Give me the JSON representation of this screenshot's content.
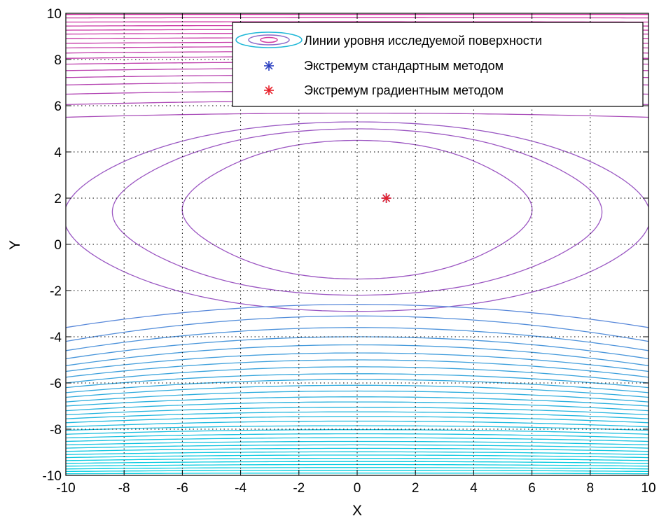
{
  "chart_data": {
    "type": "contour",
    "title": "",
    "xlabel": "X",
    "ylabel": "Y",
    "xlim": [
      -10,
      10
    ],
    "ylim": [
      -10,
      10
    ],
    "xticks": [
      -10,
      -8,
      -6,
      -4,
      -2,
      0,
      2,
      4,
      6,
      8,
      10
    ],
    "yticks": [
      -10,
      -8,
      -6,
      -4,
      -2,
      0,
      2,
      4,
      6,
      8,
      10
    ],
    "grid": true,
    "grid_style": "dotted",
    "legend_location": "top-right",
    "legend": [
      {
        "label": "Линии уровня исследуемой поверхности",
        "marker": "contour-ellipses",
        "color": "#20b8d8"
      },
      {
        "label": "Экстремум стандартным методом",
        "marker": "*",
        "color": "#2a3fc0"
      },
      {
        "label": "Экстремум градиентным методом",
        "marker": "*",
        "color": "#e8202a"
      }
    ],
    "points": [
      {
        "series": "Экстремум стандартным методом",
        "x": 1,
        "y": 2,
        "color": "#2a3fc0"
      },
      {
        "series": "Экстремум градиентным методом",
        "x": 1,
        "y": 2,
        "color": "#e8202a"
      }
    ],
    "contour_colormap": [
      "#00d0e0",
      "#7a70d8",
      "#d030a0"
    ],
    "contours": {
      "top_lines": [
        {
          "y": 9.95
        },
        {
          "y": 9.8
        },
        {
          "y": 9.62
        },
        {
          "y": 9.45
        },
        {
          "y": 9.27
        },
        {
          "y": 9.1
        },
        {
          "y": 8.9
        },
        {
          "y": 8.7
        },
        {
          "y": 8.5
        },
        {
          "y": 8.28
        },
        {
          "y": 8.05
        },
        {
          "y": 7.8
        },
        {
          "y": 7.52
        },
        {
          "y": 7.22
        },
        {
          "y": 6.9
        },
        {
          "y": 6.5
        },
        {
          "y": 6.05
        },
        {
          "y": 5.5
        }
      ],
      "u_curves": [
        {
          "top": 4.5,
          "bottom": -1.5,
          "half_width": 5.8,
          "bulge": 0.9
        },
        {
          "top": 5.0,
          "bottom": -2.2,
          "half_width": 8.3,
          "bulge": 1.1
        },
        {
          "top": 5.3,
          "bottom": -2.9,
          "half_width": 10.3,
          "bulge": 1.0
        }
      ],
      "bottom_arcs": [
        {
          "center": -2.6,
          "edge": -3.6
        },
        {
          "center": -3.1,
          "edge": -4.2
        },
        {
          "center": -3.6,
          "edge": -4.6
        },
        {
          "center": -4.0,
          "edge": -4.95
        },
        {
          "center": -4.35,
          "edge": -5.25
        },
        {
          "center": -4.7,
          "edge": -5.5
        },
        {
          "center": -5.0,
          "edge": -5.75
        },
        {
          "center": -5.3,
          "edge": -6.0
        },
        {
          "center": -5.6,
          "edge": -6.2
        },
        {
          "center": -5.85,
          "edge": -6.42
        },
        {
          "center": -6.1,
          "edge": -6.62
        },
        {
          "center": -6.35,
          "edge": -6.82
        },
        {
          "center": -6.6,
          "edge": -7.0
        },
        {
          "center": -6.82,
          "edge": -7.2
        },
        {
          "center": -7.05,
          "edge": -7.38
        },
        {
          "center": -7.25,
          "edge": -7.55
        },
        {
          "center": -7.45,
          "edge": -7.72
        },
        {
          "center": -7.65,
          "edge": -7.9
        },
        {
          "center": -7.85,
          "edge": -8.05
        },
        {
          "center": -8.02,
          "edge": -8.22
        },
        {
          "center": -8.2,
          "edge": -8.38
        },
        {
          "center": -8.37,
          "edge": -8.53
        },
        {
          "center": -8.53,
          "edge": -8.68
        },
        {
          "center": -8.68,
          "edge": -8.82
        },
        {
          "center": -8.83,
          "edge": -8.96
        },
        {
          "center": -8.98,
          "edge": -9.1
        },
        {
          "center": -9.12,
          "edge": -9.23
        },
        {
          "center": -9.26,
          "edge": -9.36
        },
        {
          "center": -9.4,
          "edge": -9.48
        },
        {
          "center": -9.53,
          "edge": -9.6
        },
        {
          "center": -9.66,
          "edge": -9.72
        },
        {
          "center": -9.78,
          "edge": -9.83
        },
        {
          "center": -9.9,
          "edge": -9.93
        }
      ]
    }
  }
}
